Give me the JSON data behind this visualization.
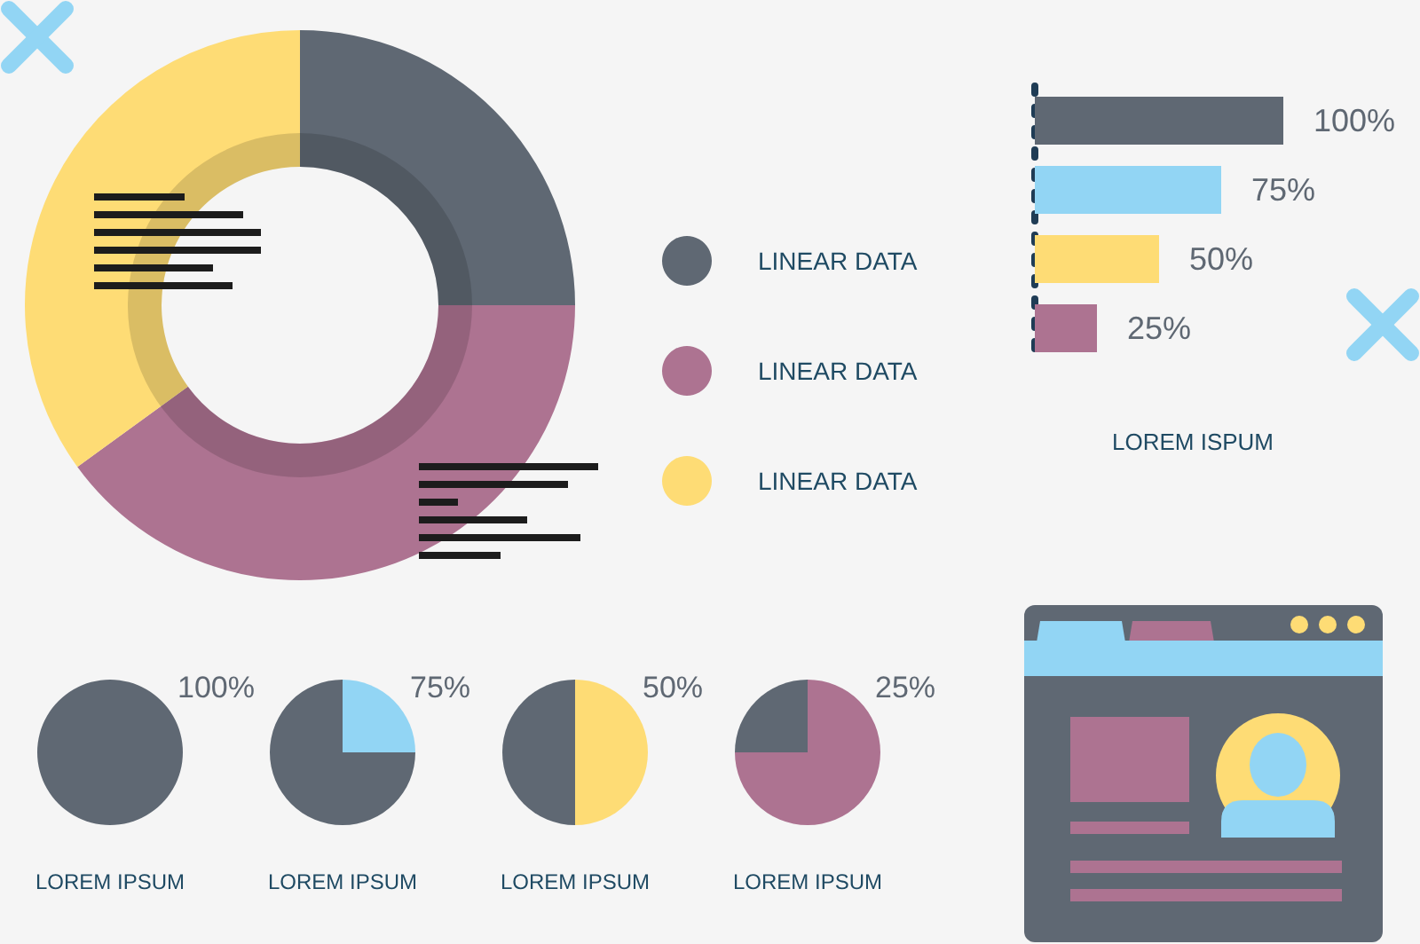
{
  "chart_data": [
    {
      "type": "donut",
      "categories": [
        "LINEAR DATA",
        "LINEAR DATA",
        "LINEAR DATA"
      ],
      "values": [
        25,
        40,
        35
      ],
      "colors": [
        "#5f6873",
        "#ad7391",
        "#fedc75"
      ],
      "legend": "right"
    },
    {
      "type": "bar",
      "orientation": "horizontal",
      "categories": [
        null,
        null,
        null,
        null
      ],
      "values": [
        100,
        75,
        50,
        25
      ],
      "colors": [
        "#5f6873",
        "#92d5f4",
        "#fedc75",
        "#ad7391"
      ],
      "value_labels": [
        "100%",
        "75%",
        "50%",
        "25%"
      ],
      "xlabel": "LOREM ISPUM",
      "tick_labels": false
    },
    {
      "type": "pie",
      "title": "100%",
      "categories": [
        null
      ],
      "values": [
        100
      ],
      "colors": [
        "#5f6873"
      ],
      "annotations": [
        "LOREM IPSUM"
      ]
    },
    {
      "type": "pie",
      "title": "75%",
      "categories": [
        null,
        null
      ],
      "values": [
        25,
        75
      ],
      "colors": [
        "#92d5f4",
        "#5f6873"
      ],
      "annotations": [
        "LOREM IPSUM"
      ]
    },
    {
      "type": "pie",
      "title": "50%",
      "categories": [
        null,
        null
      ],
      "values": [
        50,
        50
      ],
      "colors": [
        "#fedc75",
        "#5f6873"
      ],
      "annotations": [
        "LOREM IPSUM"
      ]
    },
    {
      "type": "pie",
      "title": "25%",
      "categories": [
        null,
        null
      ],
      "values": [
        75,
        25
      ],
      "colors": [
        "#ad7391",
        "#5f6873"
      ],
      "annotations": [
        "LOREM IPSUM"
      ]
    }
  ]
}
